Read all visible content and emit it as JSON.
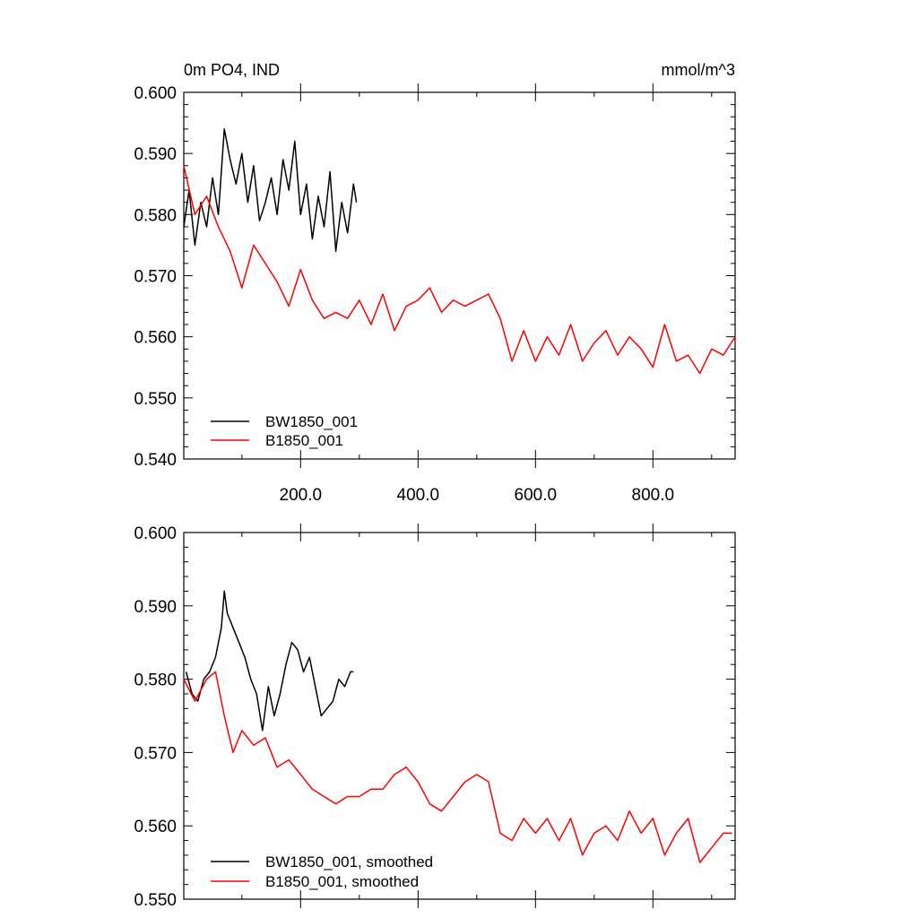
{
  "chart_data": [
    {
      "type": "line",
      "title": "0m PO4, IND",
      "units": "mmol/m^3",
      "xlim": [
        1,
        940
      ],
      "ylim": [
        0.54,
        0.6
      ],
      "xticks": [
        200,
        400,
        600,
        800
      ],
      "xtick_labels": [
        "200.0",
        "400.0",
        "600.0",
        "800.0"
      ],
      "yticks": [
        0.54,
        0.55,
        0.56,
        0.57,
        0.58,
        0.59,
        0.6
      ],
      "ytick_labels": [
        "0.540",
        "0.550",
        "0.560",
        "0.570",
        "0.580",
        "0.590",
        "0.600"
      ],
      "legend_position": "bottom-left",
      "series": [
        {
          "name": "BW1850_001",
          "color": "#000000",
          "x": [
            1,
            10,
            20,
            30,
            40,
            50,
            60,
            70,
            80,
            90,
            100,
            110,
            120,
            130,
            140,
            150,
            160,
            170,
            180,
            190,
            200,
            210,
            220,
            230,
            240,
            250,
            260,
            270,
            280,
            290,
            295
          ],
          "y": [
            0.578,
            0.584,
            0.575,
            0.582,
            0.578,
            0.586,
            0.58,
            0.594,
            0.589,
            0.585,
            0.59,
            0.582,
            0.588,
            0.579,
            0.582,
            0.586,
            0.58,
            0.589,
            0.584,
            0.592,
            0.58,
            0.585,
            0.576,
            0.583,
            0.578,
            0.587,
            0.574,
            0.582,
            0.577,
            0.585,
            0.582
          ]
        },
        {
          "name": "B1850_001",
          "color": "#ff0000",
          "x": [
            1,
            20,
            40,
            60,
            80,
            100,
            120,
            140,
            160,
            180,
            200,
            220,
            240,
            260,
            280,
            300,
            320,
            340,
            360,
            380,
            400,
            420,
            440,
            460,
            480,
            500,
            520,
            540,
            560,
            580,
            600,
            620,
            640,
            660,
            680,
            700,
            720,
            740,
            760,
            780,
            800,
            820,
            840,
            860,
            880,
            900,
            920,
            940
          ],
          "y": [
            0.588,
            0.58,
            0.583,
            0.578,
            0.574,
            0.568,
            0.575,
            0.572,
            0.569,
            0.565,
            0.571,
            0.566,
            0.563,
            0.564,
            0.563,
            0.566,
            0.562,
            0.567,
            0.561,
            0.565,
            0.566,
            0.568,
            0.564,
            0.566,
            0.565,
            0.566,
            0.567,
            0.563,
            0.556,
            0.561,
            0.556,
            0.56,
            0.557,
            0.562,
            0.556,
            0.559,
            0.561,
            0.557,
            0.56,
            0.558,
            0.555,
            0.562,
            0.556,
            0.557,
            0.554,
            0.558,
            0.557,
            0.56
          ]
        }
      ]
    },
    {
      "type": "line",
      "title": "",
      "xlim": [
        1,
        940
      ],
      "ylim": [
        0.55,
        0.6
      ],
      "yticks": [
        0.55,
        0.56,
        0.57,
        0.58,
        0.59,
        0.6
      ],
      "ytick_labels": [
        "0.550",
        "0.560",
        "0.570",
        "0.580",
        "0.590",
        "0.600"
      ],
      "legend_position": "bottom-left",
      "series": [
        {
          "name": "BW1850_001, smoothed",
          "color": "#000000",
          "x": [
            5,
            15,
            25,
            35,
            45,
            55,
            65,
            70,
            75,
            85,
            95,
            105,
            115,
            125,
            135,
            145,
            155,
            165,
            175,
            185,
            195,
            205,
            215,
            225,
            235,
            245,
            255,
            265,
            275,
            285,
            290
          ],
          "y": [
            0.581,
            0.578,
            0.577,
            0.58,
            0.581,
            0.583,
            0.587,
            0.592,
            0.589,
            0.587,
            0.585,
            0.583,
            0.58,
            0.578,
            0.573,
            0.579,
            0.575,
            0.578,
            0.582,
            0.585,
            0.584,
            0.581,
            0.583,
            0.579,
            0.575,
            0.576,
            0.577,
            0.58,
            0.579,
            0.581,
            0.581
          ]
        },
        {
          "name": "B1850_001, smoothed",
          "color": "#ff0000",
          "x": [
            1,
            20,
            40,
            55,
            70,
            85,
            100,
            120,
            140,
            160,
            180,
            200,
            220,
            240,
            260,
            280,
            300,
            320,
            340,
            360,
            380,
            400,
            420,
            440,
            460,
            480,
            500,
            520,
            540,
            560,
            580,
            600,
            620,
            640,
            660,
            680,
            700,
            720,
            740,
            760,
            780,
            800,
            820,
            840,
            860,
            880,
            900,
            920,
            935
          ],
          "y": [
            0.58,
            0.577,
            0.58,
            0.581,
            0.575,
            0.57,
            0.573,
            0.571,
            0.572,
            0.568,
            0.569,
            0.567,
            0.565,
            0.564,
            0.563,
            0.564,
            0.564,
            0.565,
            0.565,
            0.567,
            0.568,
            0.566,
            0.563,
            0.562,
            0.564,
            0.566,
            0.567,
            0.566,
            0.559,
            0.558,
            0.561,
            0.559,
            0.561,
            0.558,
            0.561,
            0.556,
            0.559,
            0.56,
            0.558,
            0.562,
            0.559,
            0.561,
            0.556,
            0.559,
            0.561,
            0.555,
            0.557,
            0.559,
            0.559
          ]
        }
      ]
    }
  ]
}
